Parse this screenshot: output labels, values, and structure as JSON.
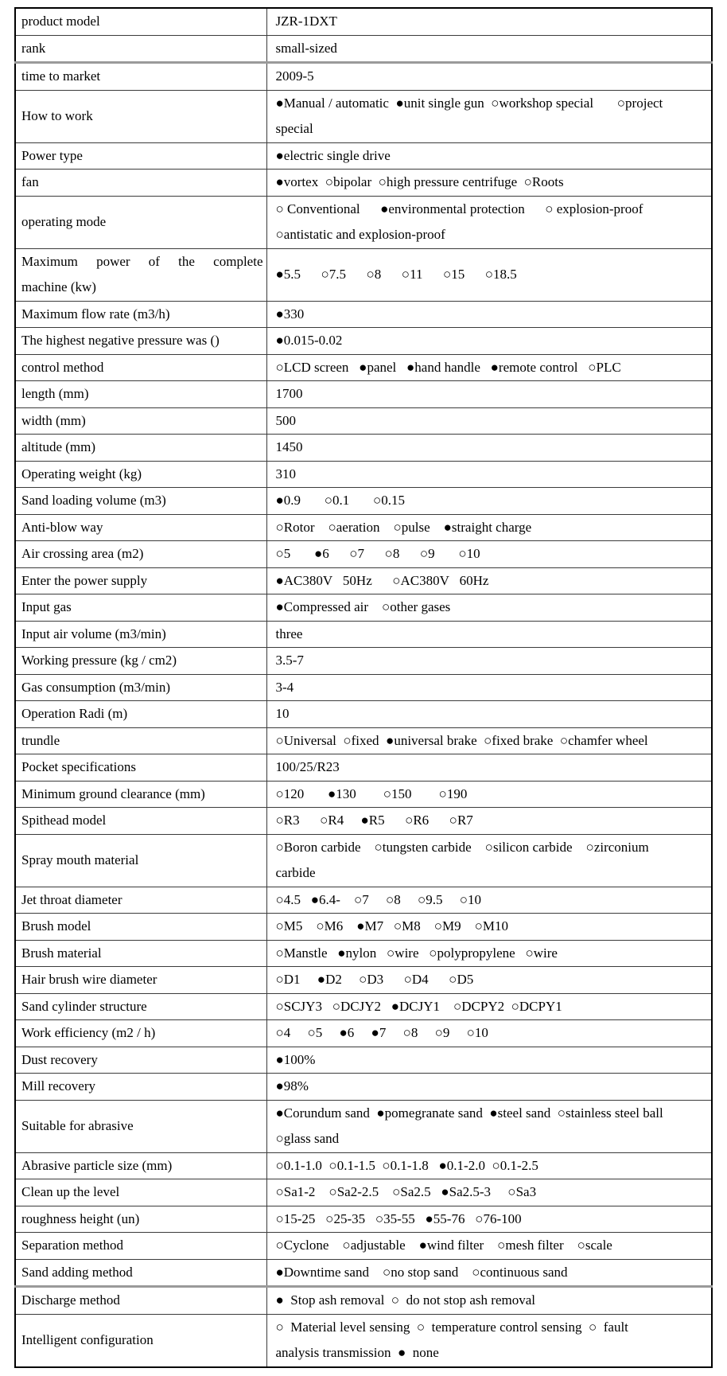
{
  "colors": {
    "border": "#3b3b3b",
    "thick_border": "#9a9a9a",
    "outer_border": "#000000",
    "text": "#000000",
    "background": "#ffffff"
  },
  "table": {
    "rows": [
      {
        "label": "product model",
        "value": "JZR-1DXT",
        "thick_top": false
      },
      {
        "label": "rank",
        "value": "small-sized",
        "thick_top": false
      },
      {
        "label": "time to market",
        "value": "2009-5",
        "thick_top": true
      },
      {
        "label": "How to work",
        "value": "●Manual / automatic  ●unit single gun  ○workshop special       ○project\nspecial",
        "thick_top": false
      },
      {
        "label": "Power type",
        "value": "●electric single drive",
        "thick_top": false
      },
      {
        "label": "fan",
        "value": "●vortex  ○bipolar  ○high pressure centrifuge  ○Roots",
        "thick_top": false
      },
      {
        "label": "operating mode",
        "value": "○ Conventional      ●environmental protection      ○ explosion-proof\n○antistatic and explosion-proof",
        "thick_top": false
      },
      {
        "label": "Maximum power of the complete machine (kw)",
        "value": "●5.5      ○7.5      ○8      ○11      ○15      ○18.5",
        "thick_top": false
      },
      {
        "label": "Maximum flow rate (m3/h)",
        "value": "●330",
        "thick_top": false
      },
      {
        "label": "The highest negative pressure was ()",
        "value": "●0.015-0.02",
        "thick_top": false
      },
      {
        "label": "control method",
        "value": "○LCD screen   ●panel   ●hand handle   ●remote control   ○PLC",
        "thick_top": false
      },
      {
        "label": "length (mm)",
        "value": "1700",
        "thick_top": false
      },
      {
        "label": "width (mm)",
        "value": "500",
        "thick_top": false
      },
      {
        "label": "altitude (mm)",
        "value": "1450",
        "thick_top": false
      },
      {
        "label": "Operating weight (kg)",
        "value": "310",
        "thick_top": false
      },
      {
        "label": "Sand loading volume (m3)",
        "value": "●0.9       ○0.1       ○0.15",
        "thick_top": false
      },
      {
        "label": "Anti-blow way",
        "value": "○Rotor    ○aeration    ○pulse    ●straight charge",
        "thick_top": false
      },
      {
        "label": "Air crossing area (m2)",
        "value": "○5       ●6      ○7      ○8      ○9       ○10",
        "thick_top": false
      },
      {
        "label": "Enter the power supply",
        "value": "●AC380V   50Hz      ○AC380V   60Hz",
        "thick_top": false
      },
      {
        "label": "Input gas",
        "value": "●Compressed air    ○other gases",
        "thick_top": false
      },
      {
        "label": "Input air volume (m3/min)",
        "value": "three",
        "thick_top": false
      },
      {
        "label": "Working pressure (kg / cm2)",
        "value": "3.5-7",
        "thick_top": false
      },
      {
        "label": "Gas consumption (m3/min)",
        "value": "3-4",
        "thick_top": false
      },
      {
        "label": "Operation Radi (m)",
        "value": "10",
        "thick_top": false
      },
      {
        "label": "trundle",
        "value": "○Universal  ○fixed  ●universal brake  ○fixed brake  ○chamfer wheel",
        "thick_top": false
      },
      {
        "label": "Pocket specifications",
        "value": "100/25/R23",
        "thick_top": false
      },
      {
        "label": "Minimum ground clearance (mm)",
        "value": "○120       ●130        ○150        ○190",
        "thick_top": false
      },
      {
        "label": "Spithead model",
        "value": "○R3      ○R4     ●R5      ○R6      ○R7",
        "thick_top": false
      },
      {
        "label": "Spray mouth material",
        "value": "○Boron carbide    ○tungsten carbide    ○silicon carbide    ○zirconium\ncarbide",
        "thick_top": false
      },
      {
        "label": "Jet throat diameter",
        "value": "○4.5   ●6.4-    ○7     ○8     ○9.5     ○10",
        "thick_top": false
      },
      {
        "label": "Brush model",
        "value": "○M5    ○M6    ●M7   ○M8    ○M9    ○M10",
        "thick_top": false
      },
      {
        "label": "Brush material",
        "value": "○Manstle   ●nylon   ○wire   ○polypropylene   ○wire",
        "thick_top": false
      },
      {
        "label": "Hair brush wire diameter",
        "value": "○D1     ●D2     ○D3      ○D4      ○D5",
        "thick_top": false
      },
      {
        "label": "Sand cylinder structure",
        "value": "○SCJY3   ○DCJY2   ●DCJY1    ○DCPY2  ○DCPY1",
        "thick_top": false
      },
      {
        "label": "Work efficiency (m2 / h)",
        "value": "○4     ○5     ●6     ●7     ○8     ○9     ○10",
        "thick_top": false
      },
      {
        "label": "Dust recovery",
        "value": "●100%",
        "thick_top": false
      },
      {
        "label": "Mill recovery",
        "value": "●98%",
        "thick_top": false
      },
      {
        "label": "Suitable for abrasive",
        "value": "●Corundum sand  ●pomegranate sand  ●steel sand  ○stainless steel ball\n○glass sand",
        "thick_top": false
      },
      {
        "label": "Abrasive particle size (mm)",
        "value": "○0.1-1.0  ○0.1-1.5  ○0.1-1.8   ●0.1-2.0  ○0.1-2.5",
        "thick_top": false
      },
      {
        "label": "Clean up the level",
        "value": "○Sa1-2    ○Sa2-2.5    ○Sa2.5   ●Sa2.5-3     ○Sa3",
        "thick_top": false
      },
      {
        "label": "roughness height (un)",
        "value": "○15-25   ○25-35   ○35-55   ●55-76   ○76-100",
        "thick_top": false
      },
      {
        "label": "Separation method",
        "value": "○Cyclone    ○adjustable    ●wind filter    ○mesh filter    ○scale",
        "thick_top": false
      },
      {
        "label": "Sand adding method",
        "value": "●Downtime sand    ○no stop sand    ○continuous sand",
        "thick_top": false
      },
      {
        "label": "Discharge method",
        "value": "●  Stop ash removal  ○  do not stop ash removal",
        "thick_top": true
      },
      {
        "label": "Intelligent configuration",
        "value": "○  Material level sensing  ○  temperature control sensing  ○  fault\nanalysis transmission  ●  none",
        "thick_top": false
      }
    ]
  }
}
